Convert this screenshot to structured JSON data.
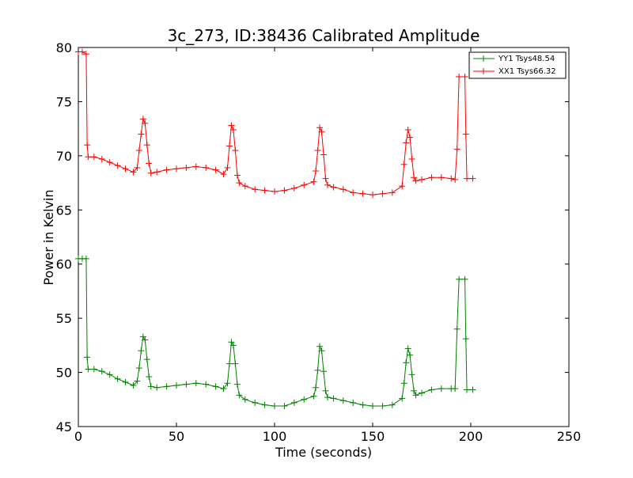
{
  "chart_data": {
    "type": "line",
    "title": "3c_273, ID:38436 Calibrated Amplitude",
    "xlabel": "Time (seconds)",
    "ylabel": "Power in Kelvin",
    "xlim": [
      0,
      250
    ],
    "ylim": [
      45,
      80
    ],
    "xticks": [
      0,
      50,
      100,
      150,
      200,
      250
    ],
    "yticks": [
      45,
      50,
      55,
      60,
      65,
      70,
      75,
      80
    ],
    "xtick_labels": [
      "0",
      "50",
      "100",
      "150",
      "200",
      "250"
    ],
    "ytick_labels": [
      "45",
      "50",
      "55",
      "60",
      "65",
      "70",
      "75",
      "80"
    ],
    "grid": false,
    "legend_position": "top-right",
    "marker": "+",
    "series": [
      {
        "name": "YY1 Tsys48.54",
        "color": "#008000",
        "points": [
          [
            0,
            60.5
          ],
          [
            2,
            60.5
          ],
          [
            4,
            60.5
          ],
          [
            4.5,
            51.4
          ],
          [
            5,
            50.3
          ],
          [
            8,
            50.3
          ],
          [
            12,
            50.1
          ],
          [
            16,
            49.8
          ],
          [
            20,
            49.4
          ],
          [
            24,
            49.1
          ],
          [
            28,
            48.8
          ],
          [
            30,
            49.2
          ],
          [
            31,
            50.4
          ],
          [
            32,
            52.0
          ],
          [
            33,
            53.3
          ],
          [
            34,
            53.0
          ],
          [
            35,
            51.2
          ],
          [
            36,
            49.6
          ],
          [
            37,
            48.7
          ],
          [
            40,
            48.6
          ],
          [
            45,
            48.7
          ],
          [
            50,
            48.8
          ],
          [
            55,
            48.9
          ],
          [
            60,
            49.0
          ],
          [
            65,
            48.9
          ],
          [
            70,
            48.7
          ],
          [
            74,
            48.5
          ],
          [
            76,
            49.0
          ],
          [
            77,
            50.8
          ],
          [
            78,
            52.8
          ],
          [
            79,
            52.5
          ],
          [
            80,
            50.8
          ],
          [
            81,
            48.9
          ],
          [
            82,
            47.9
          ],
          [
            85,
            47.5
          ],
          [
            90,
            47.2
          ],
          [
            95,
            47.0
          ],
          [
            100,
            46.9
          ],
          [
            105,
            46.9
          ],
          [
            110,
            47.2
          ],
          [
            115,
            47.5
          ],
          [
            120,
            47.8
          ],
          [
            121,
            48.6
          ],
          [
            122,
            50.2
          ],
          [
            123,
            52.4
          ],
          [
            124,
            52.0
          ],
          [
            125,
            50.1
          ],
          [
            126,
            48.3
          ],
          [
            127,
            47.7
          ],
          [
            130,
            47.6
          ],
          [
            135,
            47.4
          ],
          [
            140,
            47.2
          ],
          [
            145,
            47.0
          ],
          [
            150,
            46.9
          ],
          [
            155,
            46.9
          ],
          [
            160,
            47.0
          ],
          [
            165,
            47.6
          ],
          [
            166,
            49.0
          ],
          [
            167,
            50.9
          ],
          [
            168,
            52.2
          ],
          [
            169,
            51.6
          ],
          [
            170,
            49.8
          ],
          [
            171,
            48.3
          ],
          [
            172,
            47.9
          ],
          [
            175,
            48.1
          ],
          [
            180,
            48.4
          ],
          [
            185,
            48.5
          ],
          [
            190,
            48.5
          ],
          [
            192,
            48.5
          ],
          [
            193,
            54.0
          ],
          [
            194,
            58.6
          ],
          [
            197,
            58.6
          ],
          [
            197.5,
            53.1
          ],
          [
            198,
            48.4
          ],
          [
            201,
            48.4
          ]
        ]
      },
      {
        "name": "XX1 Tsys66.32",
        "color": "#ff0000",
        "points": [
          [
            0,
            79.6
          ],
          [
            2,
            79.6
          ],
          [
            4,
            79.4
          ],
          [
            4.5,
            71.0
          ],
          [
            5,
            69.9
          ],
          [
            8,
            69.9
          ],
          [
            12,
            69.7
          ],
          [
            16,
            69.4
          ],
          [
            20,
            69.1
          ],
          [
            24,
            68.8
          ],
          [
            28,
            68.5
          ],
          [
            30,
            68.9
          ],
          [
            31,
            70.5
          ],
          [
            32,
            72.0
          ],
          [
            33,
            73.4
          ],
          [
            34,
            73.0
          ],
          [
            35,
            71.0
          ],
          [
            36,
            69.3
          ],
          [
            37,
            68.4
          ],
          [
            40,
            68.5
          ],
          [
            45,
            68.7
          ],
          [
            50,
            68.8
          ],
          [
            55,
            68.9
          ],
          [
            60,
            69.0
          ],
          [
            65,
            68.9
          ],
          [
            70,
            68.7
          ],
          [
            74,
            68.3
          ],
          [
            76,
            68.9
          ],
          [
            77,
            70.9
          ],
          [
            78,
            72.8
          ],
          [
            79,
            72.4
          ],
          [
            80,
            70.5
          ],
          [
            81,
            68.2
          ],
          [
            82,
            67.5
          ],
          [
            85,
            67.2
          ],
          [
            90,
            66.9
          ],
          [
            95,
            66.8
          ],
          [
            100,
            66.7
          ],
          [
            105,
            66.8
          ],
          [
            110,
            67.0
          ],
          [
            115,
            67.3
          ],
          [
            120,
            67.6
          ],
          [
            121,
            68.6
          ],
          [
            122,
            70.5
          ],
          [
            123,
            72.6
          ],
          [
            124,
            72.2
          ],
          [
            125,
            70.1
          ],
          [
            126,
            67.9
          ],
          [
            127,
            67.3
          ],
          [
            130,
            67.1
          ],
          [
            135,
            66.9
          ],
          [
            140,
            66.6
          ],
          [
            145,
            66.5
          ],
          [
            150,
            66.4
          ],
          [
            155,
            66.5
          ],
          [
            160,
            66.6
          ],
          [
            165,
            67.2
          ],
          [
            166,
            69.2
          ],
          [
            167,
            71.2
          ],
          [
            168,
            72.4
          ],
          [
            169,
            71.7
          ],
          [
            170,
            69.7
          ],
          [
            171,
            68.0
          ],
          [
            172,
            67.7
          ],
          [
            175,
            67.8
          ],
          [
            180,
            68.0
          ],
          [
            185,
            68.0
          ],
          [
            190,
            67.9
          ],
          [
            192,
            67.8
          ],
          [
            193,
            70.6
          ],
          [
            194,
            77.3
          ],
          [
            197,
            77.3
          ],
          [
            197.5,
            72.0
          ],
          [
            198,
            67.9
          ],
          [
            201,
            67.9
          ]
        ]
      }
    ]
  }
}
